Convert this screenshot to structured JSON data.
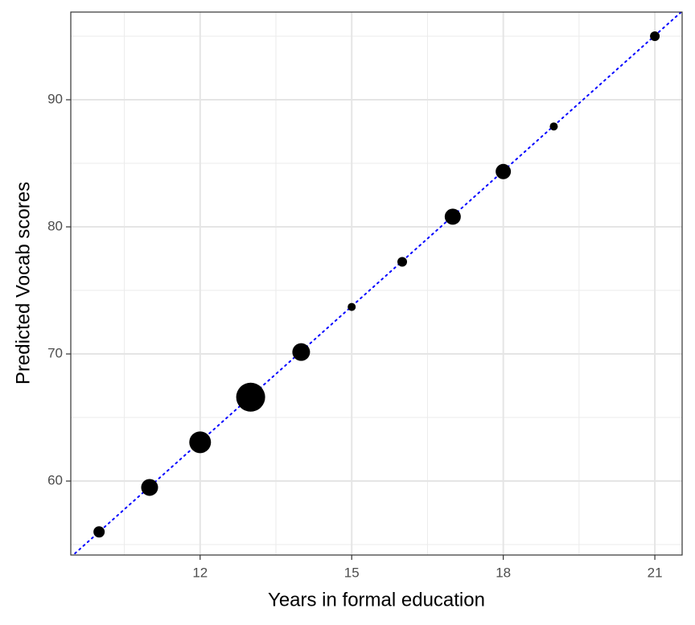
{
  "chart_data": {
    "type": "scatter",
    "x_label": "Years in formal education",
    "y_label": "Predicted Vocab scores",
    "x": [
      10,
      11,
      12,
      13,
      14,
      15,
      16,
      17,
      18,
      19,
      21
    ],
    "values": [
      56.0,
      59.5,
      63.05,
      66.6,
      70.15,
      73.7,
      77.25,
      80.8,
      84.35,
      87.9,
      95.0
    ],
    "sizes": [
      7,
      10.5,
      13.5,
      18,
      11,
      5,
      6,
      10,
      9.5,
      5,
      6
    ],
    "color": "#000000",
    "xlim": [
      9.44,
      21.54
    ],
    "xticks": [
      12,
      15,
      18,
      21
    ],
    "x_minor_ticks": [
      10.5,
      13.5,
      16.5,
      19.5
    ],
    "ylim": [
      54.18,
      96.9
    ],
    "yticks": [
      60,
      70,
      80,
      90
    ],
    "y_minor_ticks": [
      55,
      65,
      75,
      85,
      95
    ],
    "grid": true,
    "trend_line": {
      "intercept": 20.5,
      "slope": 3.55,
      "color": "#0000ff",
      "style": "dotted"
    }
  }
}
